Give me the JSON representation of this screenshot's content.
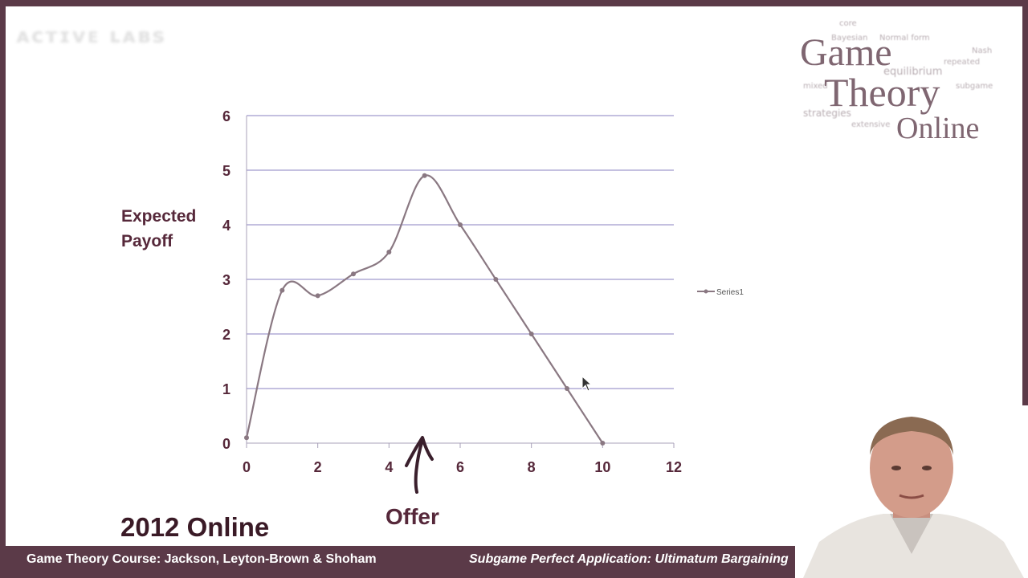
{
  "slide": {
    "corner_logo_text": "ᴀᴄᴛɪᴠᴇ ʟᴀʙꜱ",
    "offer_label": "Offer",
    "year_label": "2012 Online",
    "footer_left": "Game Theory Course: Jackson, Leyton-Brown & Shoham",
    "footer_right": "Subgame Perfect Application: Ultimatum Bargaining"
  },
  "logo": {
    "words": [
      "Game",
      "Theory",
      "Online"
    ],
    "cloud_words": [
      "Nash",
      "Bayesian",
      "Normal form",
      "equilibrium",
      "strategies",
      "repeated",
      "subgame",
      "mixed",
      "core",
      "extensive"
    ]
  },
  "chart_data": {
    "type": "line",
    "title": "",
    "xlabel": "",
    "ylabel": "Expected Payoff",
    "x_ticks": [
      0,
      2,
      4,
      6,
      8,
      10,
      12
    ],
    "y_ticks": [
      0,
      1,
      2,
      3,
      4,
      5,
      6
    ],
    "xlim": [
      0,
      12
    ],
    "ylim": [
      0,
      6
    ],
    "grid": "horizontal",
    "legend_position": "right",
    "smooth": true,
    "series": [
      {
        "name": "Series1",
        "x": [
          0,
          1,
          2,
          3,
          4,
          5,
          6,
          7,
          8,
          9,
          10
        ],
        "y": [
          0.1,
          2.8,
          2.7,
          3.1,
          3.5,
          4.9,
          4.0,
          3.0,
          2.0,
          1.0,
          0.0
        ]
      }
    ],
    "annotation": "Offer"
  },
  "colors": {
    "frame": "#5b3a48",
    "text_dark": "#56283a",
    "series": "#8a7882",
    "grid": "#8a82c0",
    "arrow": "#3a1f2c"
  }
}
